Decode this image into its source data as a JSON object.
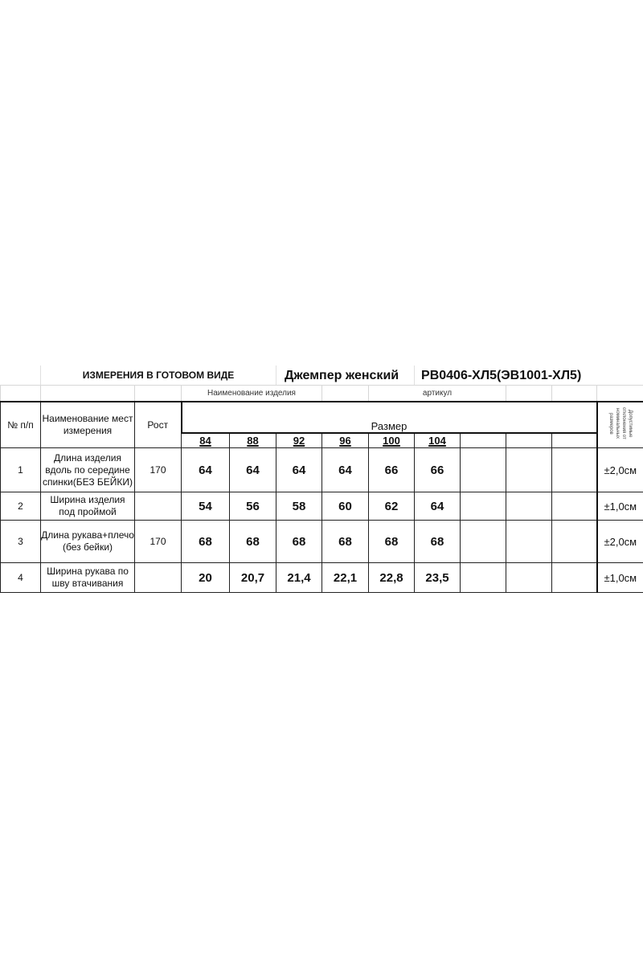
{
  "header": {
    "section_title": "ИЗМЕРЕНИЯ  В ГОТОВОМ  ВИДЕ",
    "product_name": "Джемпер женский",
    "article": "РВ0406-ХЛ5(ЭВ1001-ХЛ5)",
    "product_name_label": "Наименование изделия",
    "article_label": "артикул"
  },
  "columns": {
    "num": "№ п/п",
    "place": "Наименование мест измерения",
    "height": "Рост",
    "size": "Размер",
    "tolerance": "Допустимые отклонения от номинальных размеров"
  },
  "sizes": [
    "84",
    "88",
    "92",
    "96",
    "100",
    "104"
  ],
  "rows": [
    {
      "num": "1",
      "place": "Длина изделия вдоль по середине спинки(БЕЗ БЕЙКИ)",
      "height": "170",
      "values": [
        "64",
        "64",
        "64",
        "64",
        "66",
        "66"
      ],
      "tolerance": "±2,0см"
    },
    {
      "num": "2",
      "place": "Ширина изделия под проймой",
      "height": "",
      "values": [
        "54",
        "56",
        "58",
        "60",
        "62",
        "64"
      ],
      "tolerance": "±1,0см"
    },
    {
      "num": "3",
      "place": "Длина рукава+плечо (без бейки)",
      "height": "170",
      "values": [
        "68",
        "68",
        "68",
        "68",
        "68",
        "68"
      ],
      "tolerance": "±2,0см"
    },
    {
      "num": "4",
      "place": "Ширина рукава по шву втачивания",
      "height": "",
      "values": [
        "20",
        "20,7",
        "21,4",
        "22,1",
        "22,8",
        "23,5"
      ],
      "tolerance": "±1,0см"
    }
  ]
}
